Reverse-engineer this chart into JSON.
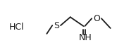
{
  "bg_color": "#ffffff",
  "line_color": "#1a1a1a",
  "text_color": "#1a1a1a",
  "hcl_label": "HCl",
  "hcl_fontsize": 9.0,
  "s_label": "S",
  "s_fontsize": 9.0,
  "o_label": "O",
  "o_fontsize": 9.0,
  "nh_label": "NH",
  "nh_fontsize": 9.0,
  "lw": 1.3
}
